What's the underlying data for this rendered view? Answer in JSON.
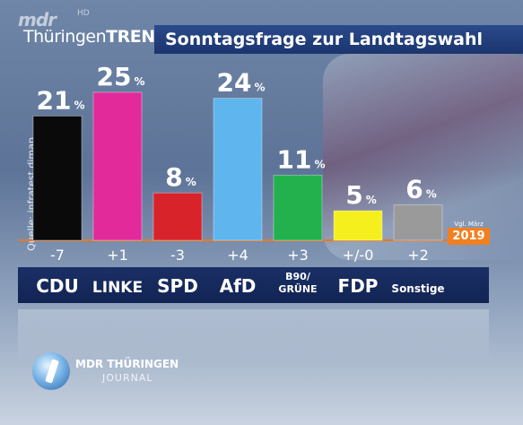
{
  "header": {
    "logo_mdr": "mdr",
    "logo_hd": "HD",
    "logo_thueringen": "Thüringen",
    "logo_trend": "TREND",
    "title": "Sonntagsfrage zur Landtagswahl"
  },
  "source": "Quelle: infratest dimap",
  "comparison": {
    "label": "Vgl. März",
    "year": "2019"
  },
  "footer": {
    "brand": "MDR THÜRINGEN",
    "sub": "JOURNAL"
  },
  "colors": {
    "accent_orange": "#f08020",
    "bar_navy": "#1a2f66"
  },
  "chart_data": {
    "type": "bar",
    "categories": [
      "CDU",
      "LINKE",
      "SPD",
      "AfD",
      "B90/ GRÜNE",
      "FDP",
      "Sonstige"
    ],
    "values": [
      21,
      25,
      8,
      24,
      11,
      5,
      6
    ],
    "value_labels": [
      "21",
      "25",
      "8",
      "24",
      "11",
      "5",
      "6"
    ],
    "unit": "%",
    "changes": [
      "-7",
      "+1",
      "-3",
      "+4",
      "+3",
      "+/-0",
      "+2"
    ],
    "colors": [
      "#0a0a0a",
      "#e22a9a",
      "#d8232a",
      "#5fb6ee",
      "#22b14c",
      "#f6ef1e",
      "#9a9a9a"
    ],
    "ylim": [
      0,
      25
    ]
  }
}
